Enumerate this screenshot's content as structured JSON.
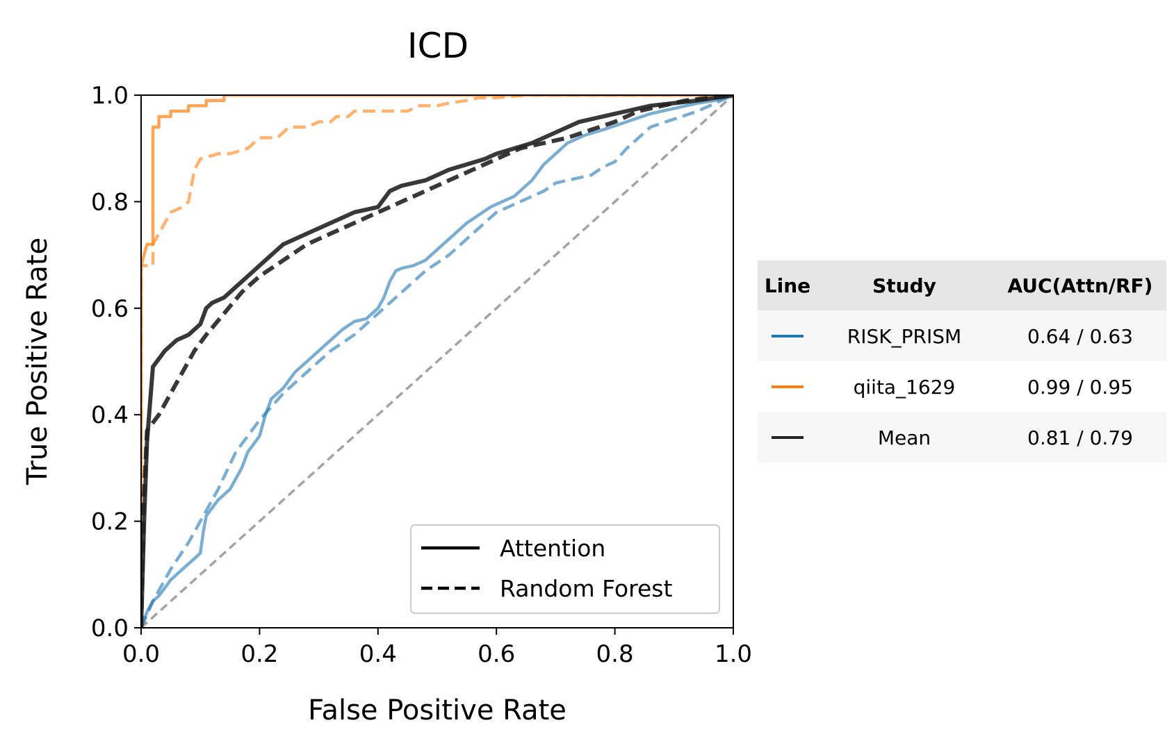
{
  "chart_data": {
    "type": "line",
    "title": "ICD",
    "xlabel": "False Positive Rate",
    "ylabel": "True Positive Rate",
    "xlim": [
      0.0,
      1.0
    ],
    "ylim": [
      0.0,
      1.0
    ],
    "x_ticks": [
      "0.0",
      "0.2",
      "0.4",
      "0.6",
      "0.8",
      "1.0"
    ],
    "y_ticks": [
      "0.0",
      "0.2",
      "0.4",
      "0.6",
      "0.8",
      "1.0"
    ],
    "grid": false,
    "legend": {
      "placement": "lower-right",
      "entries": [
        {
          "label": "Attention",
          "style": "solid"
        },
        {
          "label": "Random Forest",
          "style": "dashed"
        }
      ]
    },
    "colors": {
      "RISK_PRISM": "#1f77b4",
      "qiita_1629": "#ff7f0e",
      "Mean": "#222222",
      "chance": "#999999"
    },
    "series": [
      {
        "study": "RISK_PRISM",
        "model": "Attention",
        "style": "solid",
        "x": [
          0,
          0.01,
          0.02,
          0.03,
          0.05,
          0.07,
          0.09,
          0.1,
          0.105,
          0.11,
          0.13,
          0.15,
          0.17,
          0.18,
          0.2,
          0.21,
          0.22,
          0.24,
          0.26,
          0.28,
          0.3,
          0.32,
          0.34,
          0.36,
          0.38,
          0.4,
          0.41,
          0.42,
          0.43,
          0.44,
          0.46,
          0.48,
          0.5,
          0.51,
          0.53,
          0.55,
          0.57,
          0.59,
          0.6,
          0.63,
          0.66,
          0.68,
          0.7,
          0.72,
          0.75,
          0.78,
          0.82,
          0.86,
          0.9,
          0.94,
          0.97,
          1.0
        ],
        "y": [
          0,
          0.03,
          0.05,
          0.06,
          0.09,
          0.11,
          0.13,
          0.14,
          0.18,
          0.21,
          0.24,
          0.26,
          0.3,
          0.33,
          0.36,
          0.4,
          0.43,
          0.45,
          0.48,
          0.5,
          0.52,
          0.54,
          0.56,
          0.575,
          0.58,
          0.6,
          0.62,
          0.65,
          0.67,
          0.675,
          0.68,
          0.69,
          0.71,
          0.72,
          0.74,
          0.76,
          0.775,
          0.79,
          0.795,
          0.81,
          0.84,
          0.87,
          0.89,
          0.91,
          0.925,
          0.935,
          0.95,
          0.965,
          0.975,
          0.985,
          0.99,
          1.0
        ]
      },
      {
        "study": "RISK_PRISM",
        "model": "Random Forest",
        "style": "dashed",
        "x": [
          0,
          0.02,
          0.05,
          0.08,
          0.1,
          0.13,
          0.16,
          0.2,
          0.24,
          0.28,
          0.32,
          0.36,
          0.4,
          0.44,
          0.48,
          0.52,
          0.56,
          0.6,
          0.64,
          0.68,
          0.7,
          0.72,
          0.74,
          0.76,
          0.78,
          0.8,
          0.82,
          0.84,
          0.86,
          0.9,
          0.94,
          0.97,
          1.0
        ],
        "y": [
          0,
          0.05,
          0.11,
          0.16,
          0.2,
          0.26,
          0.33,
          0.39,
          0.44,
          0.48,
          0.52,
          0.55,
          0.59,
          0.63,
          0.67,
          0.7,
          0.74,
          0.78,
          0.8,
          0.82,
          0.835,
          0.84,
          0.845,
          0.85,
          0.865,
          0.875,
          0.9,
          0.92,
          0.94,
          0.955,
          0.97,
          0.985,
          1.0
        ]
      },
      {
        "study": "qiita_1629",
        "model": "Attention",
        "style": "solid",
        "x": [
          0,
          0.0,
          0.01,
          0.02,
          0.02,
          0.03,
          0.03,
          0.05,
          0.05,
          0.08,
          0.08,
          0.11,
          0.11,
          0.14,
          0.14,
          0.3,
          0.6,
          1.0
        ],
        "y": [
          0,
          0.68,
          0.72,
          0.72,
          0.94,
          0.94,
          0.96,
          0.96,
          0.97,
          0.97,
          0.98,
          0.98,
          0.99,
          0.99,
          1.0,
          1.0,
          1.0,
          1.0
        ],
        "alpha": 0.7
      },
      {
        "study": "qiita_1629",
        "model": "Random Forest",
        "style": "dashed",
        "x": [
          0,
          0.0,
          0.02,
          0.02,
          0.03,
          0.05,
          0.07,
          0.08,
          0.09,
          0.1,
          0.13,
          0.15,
          0.18,
          0.2,
          0.23,
          0.25,
          0.28,
          0.3,
          0.32,
          0.33,
          0.35,
          0.36,
          0.45,
          0.47,
          0.5,
          0.52,
          0.55,
          0.57,
          0.6,
          0.65,
          0.8,
          0.9,
          1.0
        ],
        "y": [
          0,
          0.68,
          0.68,
          0.72,
          0.74,
          0.78,
          0.79,
          0.8,
          0.86,
          0.88,
          0.89,
          0.89,
          0.9,
          0.92,
          0.92,
          0.94,
          0.94,
          0.95,
          0.95,
          0.96,
          0.96,
          0.97,
          0.97,
          0.98,
          0.98,
          0.985,
          0.99,
          0.995,
          0.995,
          1.0,
          1.0,
          1.0,
          1.0
        ],
        "alpha": 0.6
      },
      {
        "study": "Mean",
        "model": "Attention",
        "style": "solid",
        "x": [
          0,
          0.005,
          0.01,
          0.02,
          0.04,
          0.06,
          0.08,
          0.1,
          0.11,
          0.12,
          0.14,
          0.16,
          0.18,
          0.2,
          0.22,
          0.24,
          0.26,
          0.28,
          0.3,
          0.32,
          0.34,
          0.36,
          0.38,
          0.4,
          0.42,
          0.44,
          0.46,
          0.48,
          0.5,
          0.52,
          0.55,
          0.58,
          0.6,
          0.63,
          0.66,
          0.7,
          0.74,
          0.78,
          0.82,
          0.86,
          0.9,
          0.94,
          0.97,
          1.0
        ],
        "y": [
          0,
          0.2,
          0.35,
          0.49,
          0.52,
          0.54,
          0.55,
          0.57,
          0.6,
          0.61,
          0.62,
          0.64,
          0.66,
          0.68,
          0.7,
          0.72,
          0.73,
          0.74,
          0.75,
          0.76,
          0.77,
          0.78,
          0.785,
          0.79,
          0.82,
          0.83,
          0.835,
          0.84,
          0.85,
          0.86,
          0.87,
          0.88,
          0.89,
          0.9,
          0.91,
          0.93,
          0.95,
          0.96,
          0.97,
          0.98,
          0.985,
          0.99,
          0.995,
          1.0
        ]
      },
      {
        "study": "Mean",
        "model": "Random Forest",
        "style": "dashed",
        "x": [
          0,
          0.005,
          0.01,
          0.03,
          0.05,
          0.07,
          0.09,
          0.11,
          0.14,
          0.17,
          0.2,
          0.24,
          0.28,
          0.32,
          0.36,
          0.4,
          0.44,
          0.48,
          0.52,
          0.56,
          0.6,
          0.64,
          0.68,
          0.72,
          0.76,
          0.8,
          0.84,
          0.88,
          0.92,
          0.96,
          1.0
        ],
        "y": [
          0,
          0.25,
          0.37,
          0.4,
          0.44,
          0.48,
          0.52,
          0.55,
          0.59,
          0.63,
          0.66,
          0.69,
          0.72,
          0.74,
          0.76,
          0.78,
          0.8,
          0.82,
          0.84,
          0.86,
          0.88,
          0.9,
          0.91,
          0.92,
          0.935,
          0.95,
          0.97,
          0.98,
          0.99,
          0.995,
          1.0
        ]
      },
      {
        "study": "chance",
        "model": "chance",
        "style": "dashed",
        "x": [
          0,
          1.0
        ],
        "y": [
          0,
          1.0
        ]
      }
    ],
    "table": {
      "headers": [
        "Line",
        "Study",
        "AUC(Attn/RF)"
      ],
      "rows": [
        {
          "study": "RISK_PRISM",
          "auc": "0.64 / 0.63",
          "color": "#1f77b4"
        },
        {
          "study": "qiita_1629",
          "auc": "0.99 / 0.95",
          "color": "#ff7f0e"
        },
        {
          "study": "Mean",
          "auc": "0.81 / 0.79",
          "color": "#222222"
        }
      ]
    }
  }
}
